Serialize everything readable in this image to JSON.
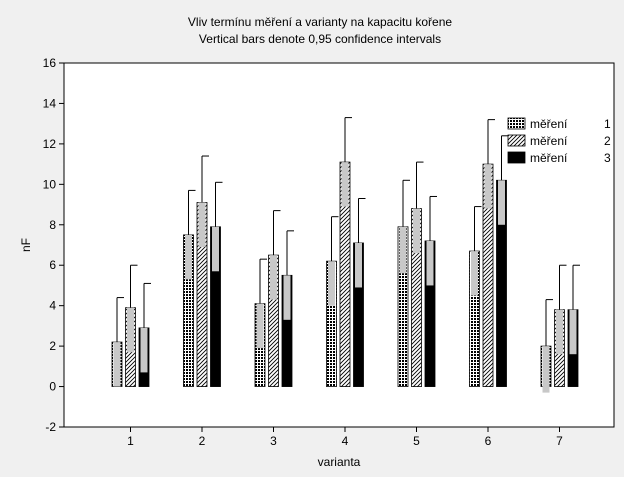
{
  "chart_data": {
    "type": "bar",
    "title": "Vliv termínu měření a varianty na kapacitu kořene",
    "subtitle": "Vertical bars denote 0,95 confidence intervals",
    "xlabel": "varianta",
    "ylabel": "nF",
    "ylim": [
      -2,
      16
    ],
    "yticks": [
      "-2",
      "0",
      "2",
      "4",
      "6",
      "8",
      "10",
      "12",
      "14",
      "16"
    ],
    "categories": [
      "1",
      "2",
      "3",
      "4",
      "5",
      "6",
      "7"
    ],
    "grid": false,
    "legend_position": "top-right",
    "series": [
      {
        "name": "měření",
        "number": "1",
        "pattern": "crosshatch",
        "values": [
          2.2,
          7.5,
          4.1,
          6.2,
          7.9,
          6.7,
          2.0
        ],
        "ci_upper": [
          4.4,
          9.7,
          6.3,
          8.4,
          10.2,
          8.9,
          4.3
        ],
        "ci_lower": [
          0.0,
          5.3,
          1.9,
          4.0,
          5.6,
          4.5,
          -0.3
        ]
      },
      {
        "name": "měření",
        "number": "2",
        "pattern": "diagonal-hatch",
        "values": [
          3.9,
          9.1,
          6.5,
          11.1,
          8.8,
          11.0,
          3.8
        ],
        "ci_upper": [
          6.0,
          11.4,
          8.7,
          13.3,
          11.1,
          13.2,
          6.0
        ],
        "ci_lower": [
          1.7,
          6.9,
          4.3,
          8.9,
          6.6,
          8.8,
          1.6
        ]
      },
      {
        "name": "měření",
        "number": "3",
        "pattern": "solid",
        "values": [
          2.9,
          7.9,
          5.5,
          7.1,
          7.2,
          10.2,
          3.8
        ],
        "ci_upper": [
          5.1,
          10.1,
          7.7,
          9.3,
          9.4,
          12.4,
          6.0
        ],
        "ci_lower": [
          0.7,
          5.7,
          3.3,
          4.9,
          5.0,
          8.0,
          1.6
        ]
      }
    ],
    "colors": {
      "background": "#f0f0f0",
      "plot_area": "#ffffff",
      "bar_fill_light": "#ffffff",
      "bar_dark": "#000000",
      "ci_fill": "#c8c8c8"
    }
  }
}
